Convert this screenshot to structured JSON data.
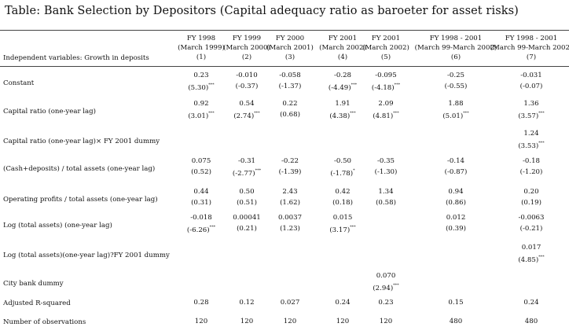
{
  "title": "Table: Bank Selection by Depositors (Capital adequacy ratio as baroeter for asset risks)",
  "dep_label": "Independent variables: Growth in deposits",
  "columns": [
    {
      "l1": "FY 1998",
      "l2": "(March 1999)",
      "l3": "(1)"
    },
    {
      "l1": "FY 1999",
      "l2": "(March 2000)",
      "l3": "(2)"
    },
    {
      "l1": "FY 2000",
      "l2": "(March 2001)",
      "l3": "(3)"
    },
    {
      "l1": "FY 2001",
      "l2": "(March 2002)",
      "l3": "(4)"
    },
    {
      "l1": "FY 2001",
      "l2": "(March 2002)",
      "l3": "(5)"
    },
    {
      "l1": "FY 1998 - 2001",
      "l2": "(March 99-March 2002)",
      "l3": "(6)"
    },
    {
      "l1": "FY 1998 - 2001",
      "l2": "(March 99-March 2002)",
      "l3": "(7)"
    }
  ],
  "rows": [
    {
      "label": "Constant",
      "cells": [
        {
          "coef": "0.23",
          "t": "(5.30)",
          "stars": "***"
        },
        {
          "coef": "-0.010",
          "t": "(-0.37)",
          "stars": ""
        },
        {
          "coef": "-0.058",
          "t": "(-1.37)",
          "stars": ""
        },
        {
          "coef": "-0.28",
          "t": "(-4.49)",
          "stars": "***"
        },
        {
          "coef": "-0.095",
          "t": "(-4.18)",
          "stars": "***"
        },
        {
          "coef": "-0.25",
          "t": "(-0.55)",
          "stars": ""
        },
        {
          "coef": "-0.031",
          "t": "(-0.07)",
          "stars": ""
        }
      ]
    },
    {
      "label": "Capital ratio (one-year lag)",
      "cells": [
        {
          "coef": "0.92",
          "t": "(3.01)",
          "stars": "***"
        },
        {
          "coef": "0.54",
          "t": "(2.74)",
          "stars": "***"
        },
        {
          "coef": "0.22",
          "t": "(0.68)",
          "stars": ""
        },
        {
          "coef": "1.91",
          "t": "(4.38)",
          "stars": "***"
        },
        {
          "coef": "2.09",
          "t": "(4.81)",
          "stars": "***"
        },
        {
          "coef": "1.88",
          "t": "(5.01)",
          "stars": "***"
        },
        {
          "coef": "1.36",
          "t": "(3.57)",
          "stars": "***"
        }
      ]
    },
    {
      "label": "Capital ratio (one-year lag)× FY 2001 dummy",
      "cells": [
        null,
        null,
        null,
        null,
        null,
        null,
        {
          "coef": "1.24",
          "t": "(3.53)",
          "stars": "***"
        }
      ]
    },
    {
      "label": "(Cash+deposits) / total assets (one-year lag)",
      "cells": [
        {
          "coef": "0.075",
          "t": "(0.52)",
          "stars": ""
        },
        {
          "coef": "-0.31",
          "t": "(-2.77)",
          "stars": "***"
        },
        {
          "coef": "-0.22",
          "t": "(-1.39)",
          "stars": ""
        },
        {
          "coef": "-0.50",
          "t": "(-1.78)",
          "stars": "*"
        },
        {
          "coef": "-0.35",
          "t": "(-1.30)",
          "stars": ""
        },
        {
          "coef": "-0.14",
          "t": "(-0.87)",
          "stars": ""
        },
        {
          "coef": "-0.18",
          "t": "(-1.20)",
          "stars": ""
        }
      ]
    },
    {
      "label": "Operating profits / total assets (one-year lag)",
      "cells": [
        {
          "coef": "0.44",
          "t": "(0.31)",
          "stars": ""
        },
        {
          "coef": "0.50",
          "t": "(0.51)",
          "stars": ""
        },
        {
          "coef": "2.43",
          "t": "(1.62)",
          "stars": ""
        },
        {
          "coef": "0.42",
          "t": "(0.18)",
          "stars": ""
        },
        {
          "coef": "1.34",
          "t": "(0.58)",
          "stars": ""
        },
        {
          "coef": "0.94",
          "t": "(0.86)",
          "stars": ""
        },
        {
          "coef": "0.20",
          "t": "(0.19)",
          "stars": ""
        }
      ]
    },
    {
      "label": "Log (total assets) (one-year lag)",
      "cells": [
        {
          "coef": "-0.018",
          "t": "(-6.26)",
          "stars": "***"
        },
        {
          "coef": "0.00041",
          "t": "(0.21)",
          "stars": ""
        },
        {
          "coef": "0.0037",
          "t": "(1.23)",
          "stars": ""
        },
        {
          "coef": "0.015",
          "t": "(3.17)",
          "stars": "***"
        },
        null,
        {
          "coef": "0.012",
          "t": "(0.39)",
          "stars": ""
        },
        {
          "coef": "-0.0063",
          "t": "(-0.21)",
          "stars": ""
        }
      ]
    },
    {
      "label": "Log (total assets)(one-year lag)?FY 2001 dummy",
      "cells": [
        null,
        null,
        null,
        null,
        null,
        null,
        {
          "coef": "0.017",
          "t": "(4.85)",
          "stars": "***"
        }
      ]
    },
    {
      "label": "City bank dummy",
      "cells": [
        null,
        null,
        null,
        null,
        {
          "coef": "0.070",
          "t": "(2.94)",
          "stars": "***"
        },
        null,
        null
      ]
    },
    {
      "label": "Adjusted R-squared",
      "cells": [
        {
          "coef": "0.28"
        },
        {
          "coef": "0.12"
        },
        {
          "coef": "0.027"
        },
        {
          "coef": "0.24"
        },
        {
          "coef": "0.23"
        },
        {
          "coef": "0.15"
        },
        {
          "coef": "0.24"
        }
      ]
    },
    {
      "label": "Number of observations",
      "cells": [
        {
          "coef": "120"
        },
        {
          "coef": "120"
        },
        {
          "coef": "120"
        },
        {
          "coef": "120"
        },
        {
          "coef": "120"
        },
        {
          "coef": "480"
        },
        {
          "coef": "480"
        }
      ]
    }
  ]
}
